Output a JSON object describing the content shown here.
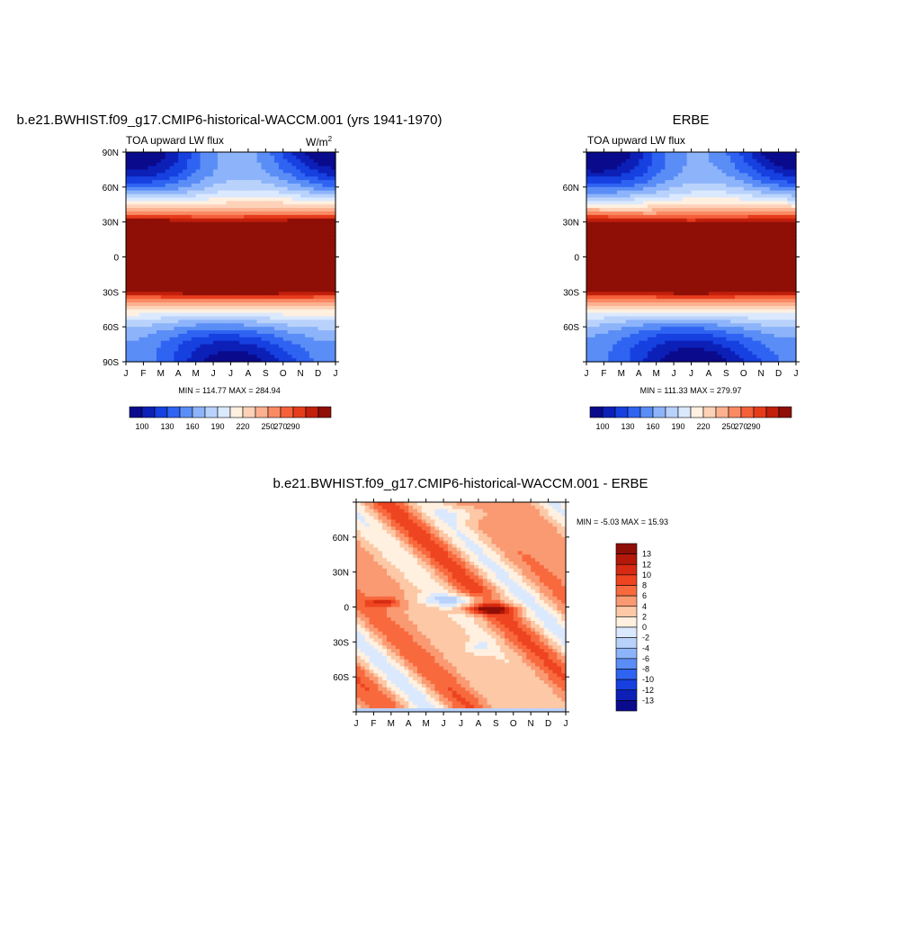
{
  "chart_data": [
    {
      "type": "heatmap",
      "title": "b.e21.BWHIST.f09_g17.CMIP6-historical-WACCM.001 (yrs 1941-1970)",
      "subtitle": "TOA upward LW flux",
      "units": "W/m",
      "units_sup": "2",
      "x_ticks": [
        "J",
        "F",
        "M",
        "A",
        "M",
        "J",
        "J",
        "A",
        "S",
        "O",
        "N",
        "D",
        "J"
      ],
      "y_ticks": [
        "90N",
        "60N",
        "30N",
        "0",
        "30S",
        "60S",
        "90S"
      ],
      "ylim": [
        -90,
        90
      ],
      "stats": "MIN = 114.77  MAX = 284.94",
      "colorbar": {
        "orientation": "horizontal",
        "levels": [
          100,
          115,
          130,
          145,
          160,
          175,
          190,
          205,
          220,
          235,
          250,
          260,
          270,
          280,
          290
        ],
        "labels": [
          "100",
          "130",
          "160",
          "190",
          "220",
          "250",
          "270",
          "290"
        ],
        "colors": [
          "#0a0a8c",
          "#0c20b8",
          "#1640e0",
          "#2f63f2",
          "#5a8df6",
          "#8db4fa",
          "#b9d2fc",
          "#dbe9ff",
          "#fff0e0",
          "#fdd2b8",
          "#fbb18f",
          "#f98a64",
          "#f5603a",
          "#e63c1c",
          "#c21f0c",
          "#8f0f06"
        ]
      }
    },
    {
      "type": "heatmap",
      "title": "ERBE",
      "subtitle": "TOA upward LW flux",
      "x_ticks": [
        "J",
        "F",
        "M",
        "A",
        "M",
        "J",
        "J",
        "A",
        "S",
        "O",
        "N",
        "D",
        "J"
      ],
      "y_ticks": [
        "",
        "60N",
        "30N",
        "0",
        "30S",
        "60S",
        ""
      ],
      "ylim": [
        -90,
        90
      ],
      "stats": "MIN = 111.33  MAX = 279.97",
      "colorbar": {
        "orientation": "horizontal",
        "levels": [
          100,
          115,
          130,
          145,
          160,
          175,
          190,
          205,
          220,
          235,
          250,
          260,
          270,
          280,
          290
        ],
        "labels": [
          "100",
          "130",
          "160",
          "190",
          "220",
          "250",
          "270",
          "290"
        ]
      }
    },
    {
      "type": "heatmap",
      "title": "b.e21.BWHIST.f09_g17.CMIP6-historical-WACCM.001 - ERBE",
      "x_ticks": [
        "J",
        "F",
        "M",
        "A",
        "M",
        "J",
        "J",
        "A",
        "S",
        "O",
        "N",
        "D",
        "J"
      ],
      "y_ticks": [
        "",
        "60N",
        "30N",
        "0",
        "30S",
        "60S",
        ""
      ],
      "ylim": [
        -90,
        90
      ],
      "stats": "MIN =  -5.03 MAX =  15.93",
      "colorbar": {
        "orientation": "vertical",
        "levels": [
          13,
          12,
          10,
          8,
          6,
          4,
          2,
          0,
          -2,
          -4,
          -6,
          -8,
          -10,
          -12,
          -13
        ],
        "labels": [
          "13",
          "12",
          "10",
          "8",
          "6",
          "4",
          "2",
          "0",
          "-2",
          "-4",
          "-6",
          "-8",
          "-10",
          "-12",
          "-13"
        ],
        "colors": [
          "#8f0f06",
          "#b31808",
          "#d62a12",
          "#ee4420",
          "#f86a3e",
          "#fa9a72",
          "#fcc8a6",
          "#fff0e0",
          "#dbe9ff",
          "#b9d2fc",
          "#8db4fa",
          "#5a8df6",
          "#2f63f2",
          "#1640e0",
          "#0c20b8",
          "#0a0a8c"
        ]
      }
    }
  ]
}
